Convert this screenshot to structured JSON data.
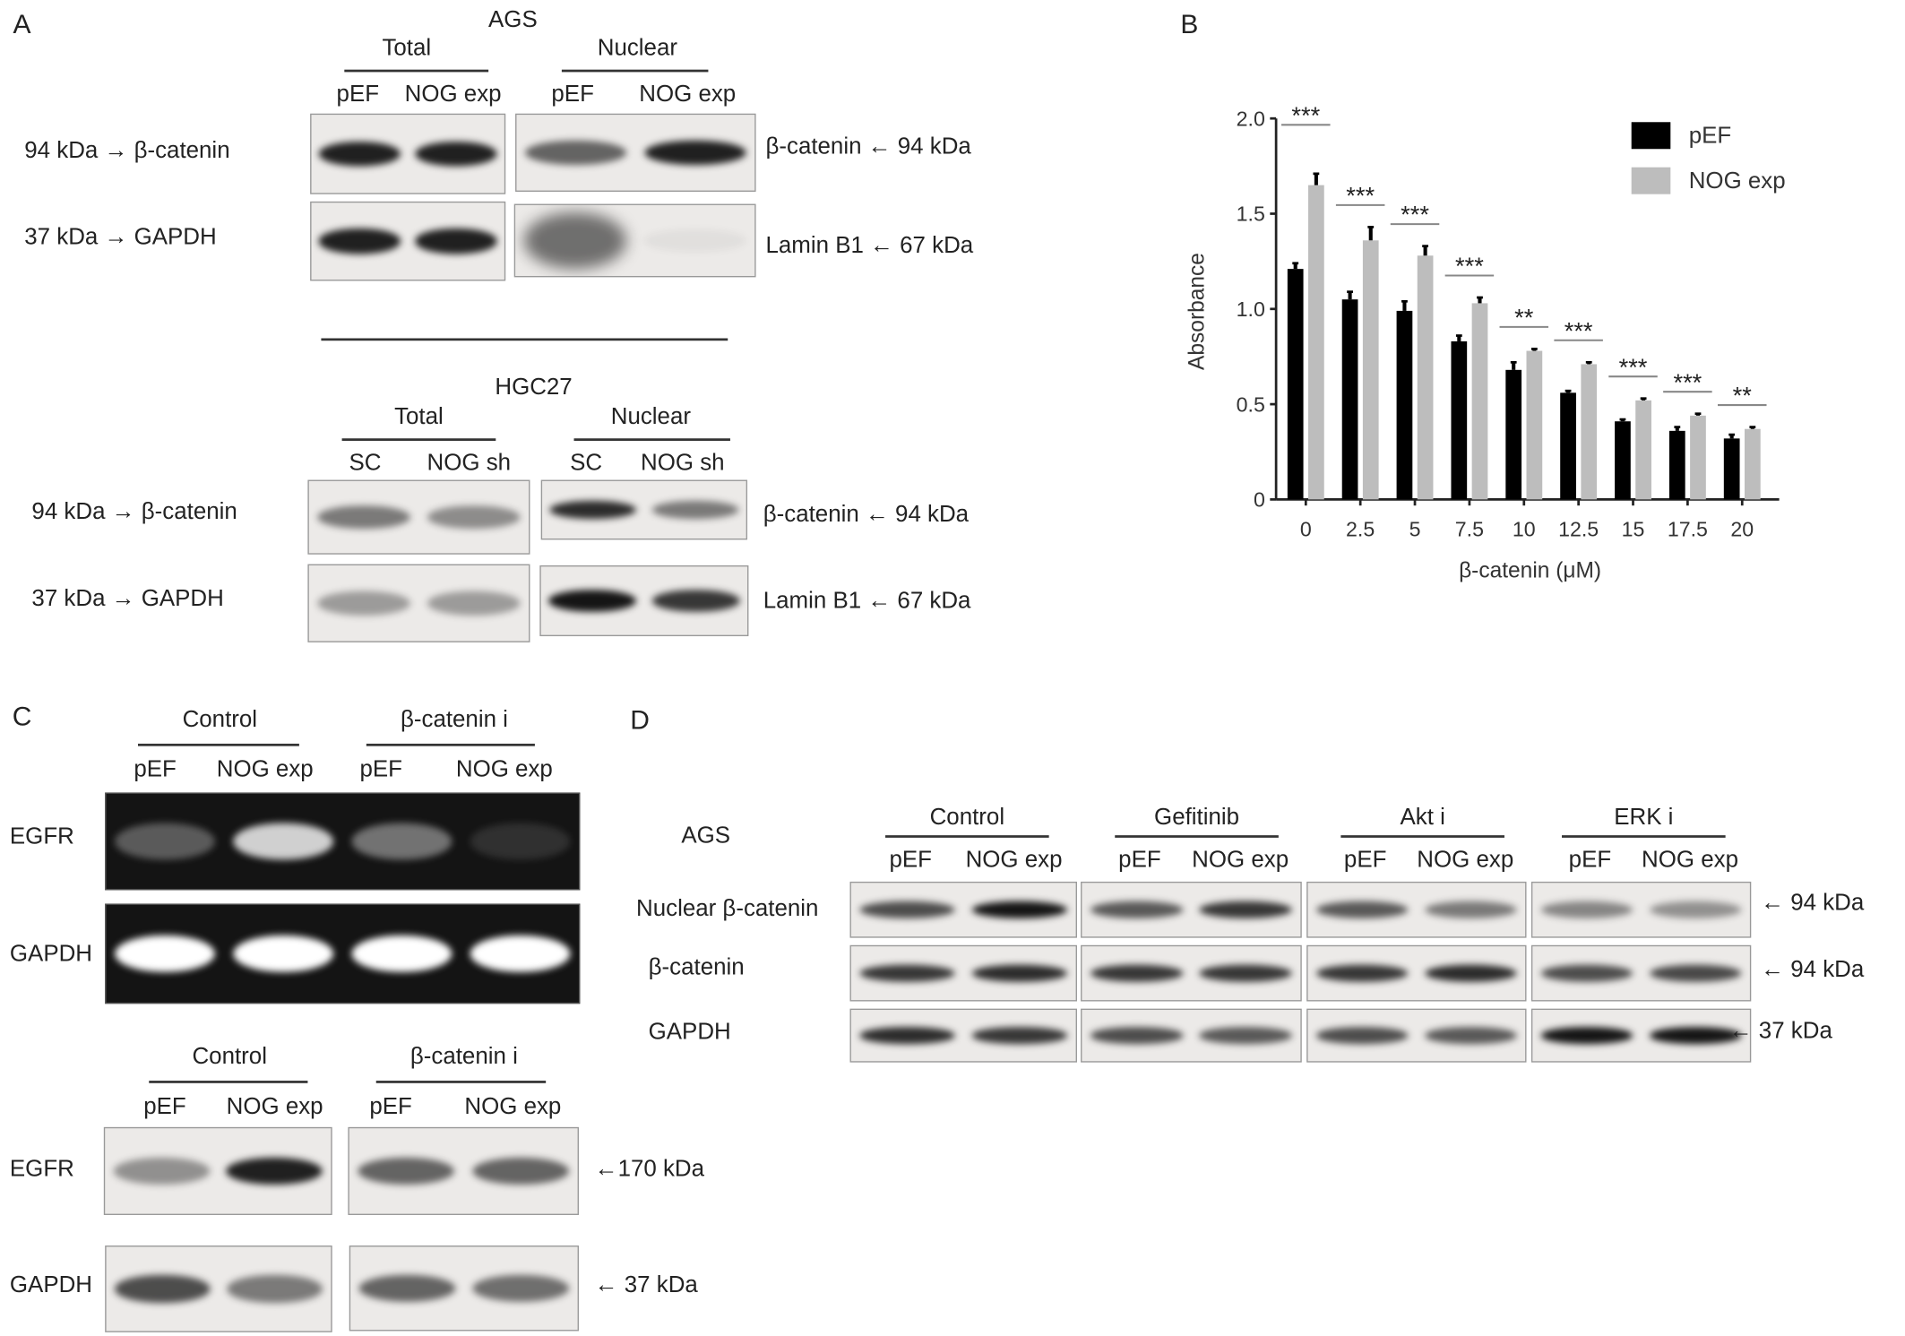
{
  "panel_a": {
    "label": "A",
    "ags": {
      "title": "AGS",
      "total": "Total",
      "nuclear": "Nuclear",
      "lanes": [
        "pEF",
        "NOG exp",
        "pEF",
        "NOG exp"
      ]
    },
    "hgc27": {
      "title": "HGC27",
      "total": "Total",
      "nuclear": "Nuclear",
      "lanes": [
        "SC",
        "NOG sh",
        "SC",
        "NOG sh"
      ]
    },
    "left_markers": [
      "94  kDa  →  β-catenin",
      "37  kDa  →  GAPDH"
    ],
    "right_markers": [
      "β-catenin ←  94  kDa",
      "Lamin B1 ←  67  kDa"
    ],
    "band_intensity": {
      "ags_total_bcat": [
        0.9,
        0.9
      ],
      "ags_nuclear_bcat": [
        0.6,
        0.9
      ],
      "ags_total_gapdh": [
        0.9,
        0.9
      ],
      "ags_nuclear_lamin": [
        0.55,
        0.05
      ],
      "hgc_total_bcat": [
        0.5,
        0.42
      ],
      "hgc_nuclear_bcat": [
        0.85,
        0.5
      ],
      "hgc_total_gapdh": [
        0.35,
        0.35
      ],
      "hgc_nuclear_lamin": [
        0.95,
        0.8
      ]
    }
  },
  "panel_b": {
    "label": "B"
  },
  "chart_data": {
    "type": "bar",
    "xlabel": "β-catenin (μM)",
    "ylabel": "Absorbance",
    "categories": [
      "0",
      "2.5",
      "5",
      "7.5",
      "10",
      "12.5",
      "15",
      "17.5",
      "20"
    ],
    "ylim": [
      0,
      2.0
    ],
    "yticks": [
      "0",
      "0.5",
      "1.0",
      "1.5",
      "2.0"
    ],
    "legend_position": "top-right",
    "grid": false,
    "series": [
      {
        "name": "pEF",
        "color": "#000000",
        "values": [
          1.21,
          1.05,
          0.99,
          0.83,
          0.68,
          0.56,
          0.41,
          0.36,
          0.32
        ],
        "errors": [
          0.03,
          0.04,
          0.05,
          0.03,
          0.04,
          0.01,
          0.01,
          0.02,
          0.02
        ]
      },
      {
        "name": "NOG exp",
        "color": "#bdbdbd",
        "values": [
          1.65,
          1.36,
          1.28,
          1.03,
          0.78,
          0.71,
          0.52,
          0.44,
          0.37
        ],
        "errors": [
          0.06,
          0.07,
          0.05,
          0.03,
          0.01,
          0.01,
          0.01,
          0.01,
          0.01
        ]
      }
    ],
    "significance": [
      "***",
      "***",
      "***",
      "***",
      "**",
      "***",
      "***",
      "***",
      "**"
    ]
  },
  "panel_c": {
    "label": "C",
    "groups": [
      "Control",
      "β-catenin i"
    ],
    "lanes": [
      "pEF",
      "NOG exp",
      "pEF",
      "NOG exp"
    ],
    "rows": [
      "EGFR",
      "GAPDH"
    ],
    "right_markers": [
      "←170  kDa",
      "← 37  kDa"
    ],
    "band_intensity": {
      "gel_egfr": [
        0.3,
        0.8,
        0.4,
        0.12
      ],
      "gel_gapdh": [
        1,
        1,
        1,
        1
      ],
      "wb_egfr_control": [
        0.4,
        0.9
      ],
      "wb_egfr_bcati": [
        0.6,
        0.6
      ],
      "wb_gapdh_control": [
        0.7,
        0.5
      ],
      "wb_gapdh_bcati": [
        0.6,
        0.55
      ]
    }
  },
  "panel_d": {
    "label": "D",
    "cell_line": "AGS",
    "groups": [
      "Control",
      "Gefitinib",
      "Akt i",
      "ERK i"
    ],
    "lanes": [
      "pEF",
      "NOG exp"
    ],
    "rows": [
      "Nuclear β-catenin",
      "β-catenin",
      "GAPDH"
    ],
    "right_markers": [
      "← 94  kDa",
      "← 94  kDa",
      "← 37  kDa"
    ],
    "band_intensity": {
      "nuclear_bcat": [
        [
          0.7,
          0.95
        ],
        [
          0.65,
          0.8
        ],
        [
          0.65,
          0.5
        ],
        [
          0.45,
          0.4
        ]
      ],
      "bcat": [
        [
          0.8,
          0.85
        ],
        [
          0.8,
          0.8
        ],
        [
          0.8,
          0.85
        ],
        [
          0.7,
          0.72
        ]
      ],
      "gapdh": [
        [
          0.85,
          0.8
        ],
        [
          0.7,
          0.65
        ],
        [
          0.7,
          0.65
        ],
        [
          0.95,
          0.95
        ]
      ]
    }
  }
}
